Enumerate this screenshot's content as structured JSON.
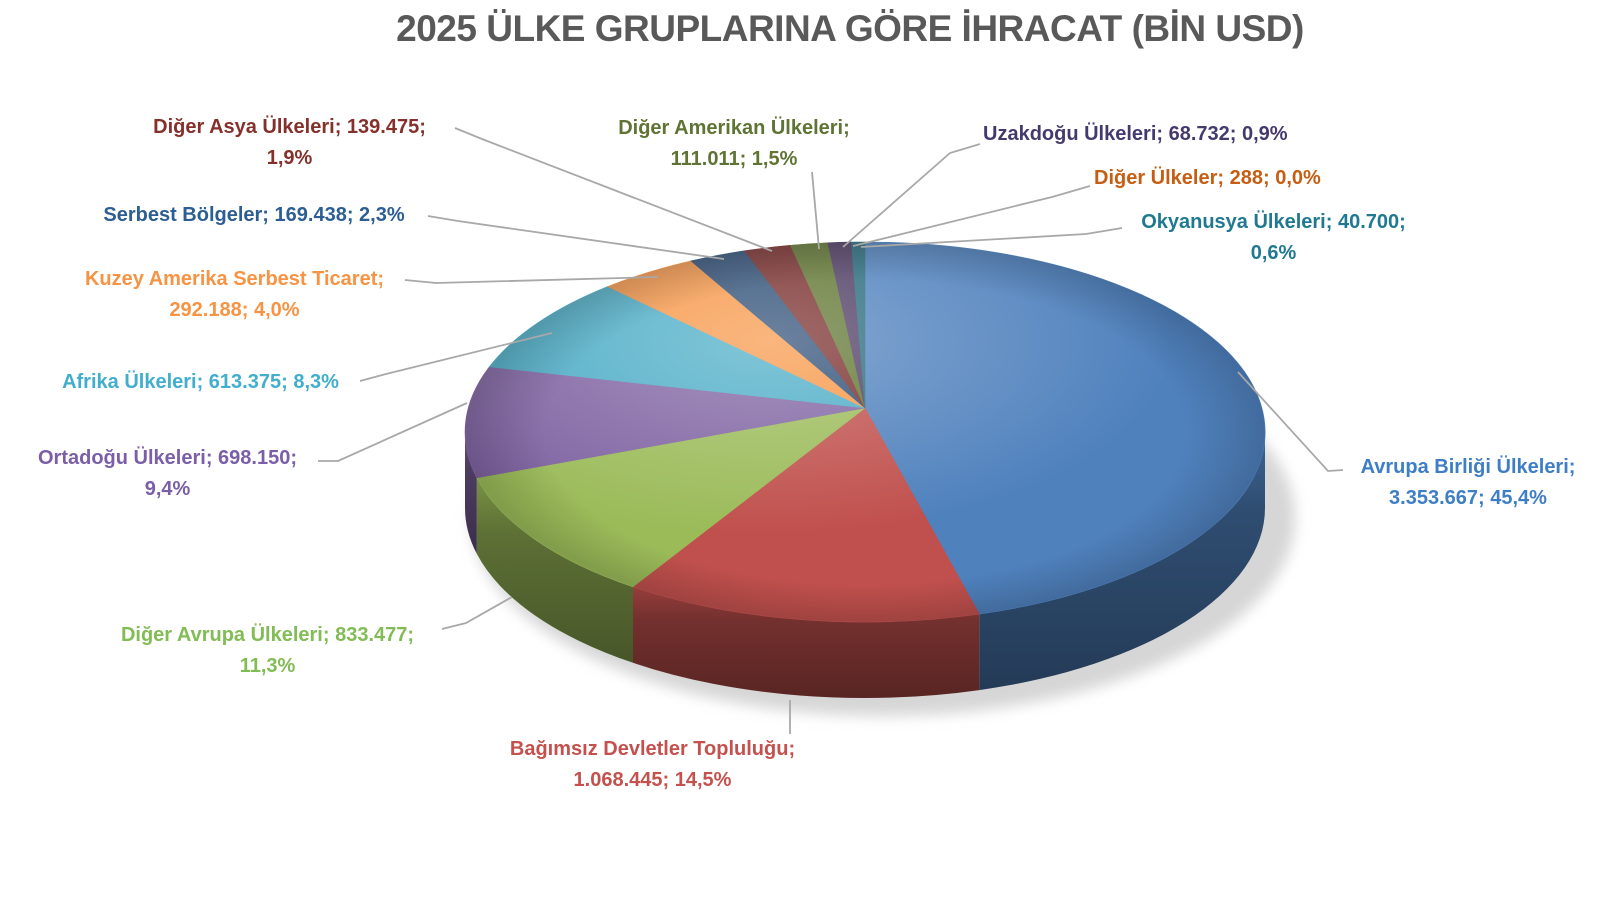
{
  "chart_data": {
    "type": "pie",
    "style": "3d",
    "title": "2025 ÜLKE GRUPLARINA GÖRE İHRACAT (BİN USD)",
    "unit": "BİN USD",
    "direction": "clockwise",
    "start_angle_deg": 0,
    "legend_position": "none",
    "data_labels": "category; value; percent",
    "leader_line_color": "#A8A8A8",
    "title_color": "#595959",
    "series": [
      {
        "key": "avrupa-birligi",
        "label": "Avrupa Birliği Ülkeleri",
        "value": 3353667,
        "value_label": "3.353.667",
        "pct_label": "45,4%",
        "color": "#4F81BD",
        "label_color": "#3E7EC6",
        "label_line1": "Avrupa Birliği Ülkeleri;",
        "label_line2": "3.353.667; 45,4%"
      },
      {
        "key": "bagimsiz-devletler",
        "label": "Bağımsız Devletler Topluluğu",
        "value": 1068445,
        "value_label": "1.068.445",
        "pct_label": "14,5%",
        "color": "#C0504D",
        "label_color": "#C4514E",
        "label_line1": "Bağımsız Devletler Topluluğu;",
        "label_line2": "1.068.445; 14,5%"
      },
      {
        "key": "diger-avrupa",
        "label": "Diğer Avrupa Ülkeleri",
        "value": 833477,
        "value_label": "833.477",
        "pct_label": "11,3%",
        "color": "#9BBB59",
        "label_color": "#82BC55",
        "label_line1": "Diğer Avrupa Ülkeleri; 833.477;",
        "label_line2": "11,3%"
      },
      {
        "key": "ortadogu",
        "label": "Ortadoğu Ülkeleri",
        "value": 698150,
        "value_label": "698.150",
        "pct_label": "9,4%",
        "color": "#8064A2",
        "label_color": "#7A5EA8",
        "label_line1": "Ortadoğu Ülkeleri; 698.150;",
        "label_line2": "9,4%"
      },
      {
        "key": "afrika",
        "label": "Afrika Ülkeleri",
        "value": 613375,
        "value_label": "613.375",
        "pct_label": "8,3%",
        "color": "#4BACC6",
        "label_color": "#41AECE",
        "label_line1": "Afrika Ülkeleri; 613.375; 8,3%",
        "label_line2": ""
      },
      {
        "key": "kuzey-amerika",
        "label": "Kuzey Amerika Serbest Ticaret",
        "value": 292188,
        "value_label": "292.188",
        "pct_label": "4,0%",
        "color": "#F79646",
        "label_color": "#F79342",
        "label_line1": "Kuzey Amerika Serbest Ticaret;",
        "label_line2": "292.188; 4,0%"
      },
      {
        "key": "serbest-bolgeler",
        "label": "Serbest Bölgeler",
        "value": 169438,
        "value_label": "169.438",
        "pct_label": "2,3%",
        "color": "#2C4D75",
        "label_color": "#2C5E93",
        "label_line1": "Serbest Bölgeler; 169.438; 2,3%",
        "label_line2": ""
      },
      {
        "key": "diger-asya",
        "label": "Diğer Asya Ülkeleri",
        "value": 139475,
        "value_label": "139.475",
        "pct_label": "1,9%",
        "color": "#772C2A",
        "label_color": "#85302B",
        "label_line1": "Diğer Asya Ülkeleri; 139.475;",
        "label_line2": "1,9%"
      },
      {
        "key": "diger-amerikan",
        "label": "Diğer Amerikan Ülkeleri",
        "value": 111011,
        "value_label": "111.011",
        "pct_label": "1,5%",
        "color": "#5F7530",
        "label_color": "#5F7434",
        "label_line1": "Diğer Amerikan Ülkeleri;",
        "label_line2": "111.011; 1,5%"
      },
      {
        "key": "uzakdogu",
        "label": "Uzakdoğu Ülkeleri",
        "value": 68732,
        "value_label": "68.732",
        "pct_label": "0,9%",
        "color": "#4D3B62",
        "label_color": "#443A6E",
        "label_line1": "Uzakdoğu Ülkeleri; 68.732; 0,9%",
        "label_line2": ""
      },
      {
        "key": "diger-ulkeler",
        "label": "Diğer Ülkeler",
        "value": 288,
        "value_label": "288",
        "pct_label": "0,0%",
        "color": "#B65708",
        "label_color": "#C55E13",
        "label_line1": "Diğer Ülkeler; 288; 0,0%",
        "label_line2": ""
      },
      {
        "key": "okyanusya",
        "label": "Okyanusya Ülkeleri",
        "value": 40700,
        "value_label": "40.700",
        "pct_label": "0,6%",
        "color": "#276A7C",
        "label_color": "#1F7A91",
        "label_line1": "Okyanusya Ülkeleri; 40.700;",
        "label_line2": "0,6%"
      }
    ]
  }
}
